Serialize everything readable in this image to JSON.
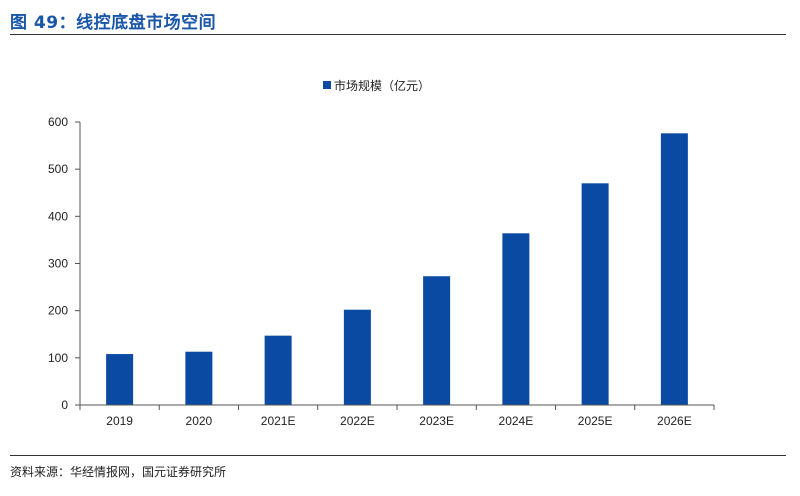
{
  "figure": {
    "title": "图 49：线控底盘市场空间",
    "source": "资料来源：华经情报网，国元证券研究所"
  },
  "colors": {
    "bar": "#0b4aa2",
    "title": "#1a56a8",
    "axis": "#555555"
  },
  "chart_data": {
    "type": "bar",
    "categories": [
      "2019",
      "2020",
      "2021E",
      "2022E",
      "2023E",
      "2024E",
      "2025E",
      "2026E"
    ],
    "series": [
      {
        "name": "市场规模（亿元）",
        "values": [
          108,
          113,
          147,
          202,
          273,
          364,
          470,
          576
        ]
      }
    ],
    "ylim": [
      0,
      600
    ],
    "yticks": [
      0,
      100,
      200,
      300,
      400,
      500,
      600
    ],
    "legend_position": "top-center",
    "grid": false
  }
}
